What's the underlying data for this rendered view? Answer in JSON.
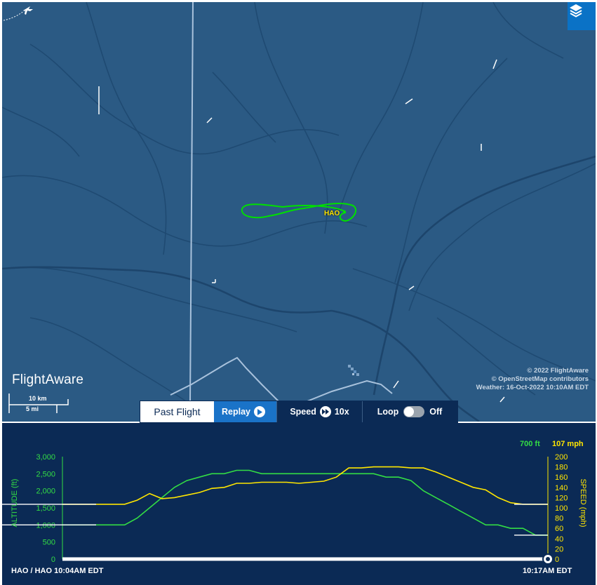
{
  "map": {
    "airport_label": "HAO",
    "attribution": [
      "© 2022 FlightAware",
      "© OpenStreetMap contributors",
      "Weather: 16-Oct-2022 10:10AM EDT"
    ],
    "logo_text": "FlightAware",
    "scale_km": "10 km",
    "scale_mi": "5 mi",
    "layers_icon": "layers-icon",
    "track_color": "#00e000",
    "background_color": "#2b5a84"
  },
  "controls": {
    "past_flight": "Past Flight",
    "replay": "Replay",
    "speed_label": "Speed",
    "speed_value": "10x",
    "loop_label": "Loop",
    "loop_state": "Off",
    "active_color": "#1a73c8"
  },
  "graph": {
    "current_altitude": "700 ft",
    "current_speed": "107 mph",
    "altitude_axis_label": "ALTITUDE (ft)",
    "speed_axis_label": "SPEED (mph)",
    "altitude_ticks": [
      "3,000",
      "2,500",
      "2,000",
      "1,500",
      "1,000",
      "500",
      "0"
    ],
    "speed_ticks": [
      "200",
      "180",
      "160",
      "140",
      "120",
      "100",
      "80",
      "60",
      "40",
      "20",
      "0"
    ],
    "start_label": "HAO / HAO 10:04AM EDT",
    "end_label": "10:17AM EDT",
    "altitude_color": "#33dd44",
    "speed_color": "#ffe600"
  },
  "chart_data": {
    "type": "line",
    "title": "",
    "x_range": [
      "10:04AM EDT",
      "10:17AM EDT"
    ],
    "series": [
      {
        "name": "ALTITUDE (ft)",
        "axis": "left",
        "ylim": [
          0,
          3000
        ],
        "values": [
          1000,
          1000,
          1000,
          1000,
          1000,
          1000,
          1200,
          1500,
          1800,
          2100,
          2300,
          2400,
          2500,
          2500,
          2600,
          2600,
          2500,
          2500,
          2500,
          2500,
          2500,
          2500,
          2500,
          2500,
          2500,
          2500,
          2400,
          2400,
          2300,
          2000,
          1800,
          1600,
          1400,
          1200,
          1000,
          1000,
          900,
          900,
          700,
          700
        ]
      },
      {
        "name": "SPEED (mph)",
        "axis": "right",
        "ylim": [
          0,
          200
        ],
        "values": [
          107,
          107,
          107,
          107,
          107,
          107,
          115,
          128,
          118,
          120,
          125,
          130,
          138,
          140,
          148,
          148,
          150,
          150,
          150,
          148,
          150,
          152,
          160,
          178,
          178,
          180,
          180,
          180,
          178,
          178,
          170,
          160,
          150,
          140,
          135,
          120,
          110,
          107,
          107,
          107
        ]
      }
    ]
  }
}
